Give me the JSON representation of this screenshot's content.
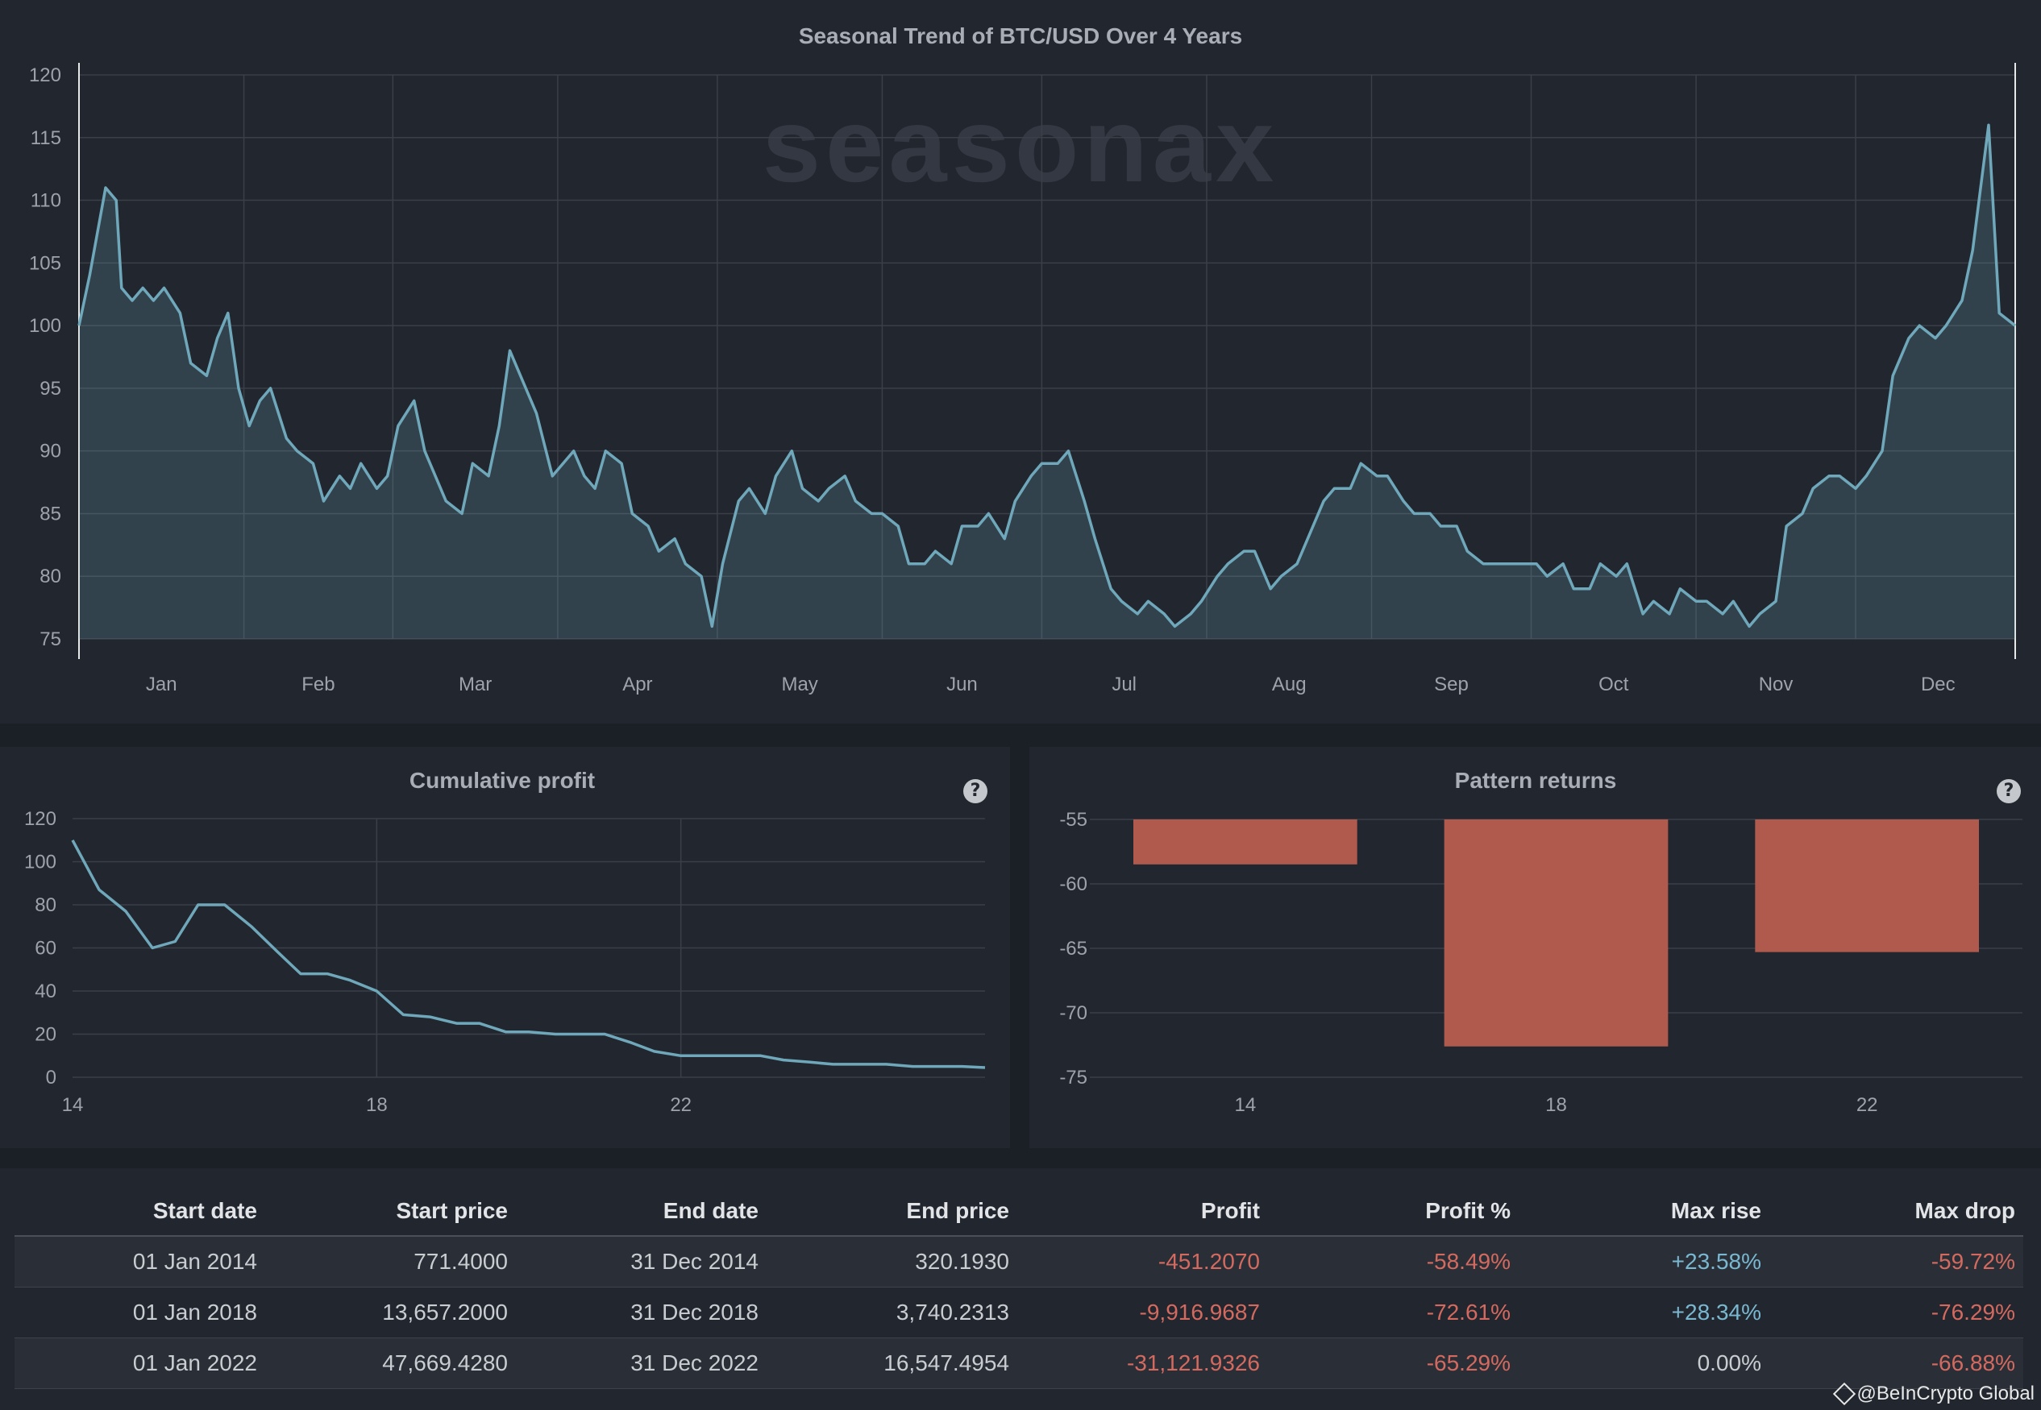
{
  "colors": {
    "line": "#6fa8bb",
    "fill": "#6fa8bb",
    "bar": "#b05a4e",
    "negative": "#d46a5f",
    "positive": "#79b8d0"
  },
  "watermark": "seasonax",
  "chart_data": [
    {
      "type": "area",
      "title": "Seasonal Trend of BTC/USD Over 4 Years",
      "x_ticks": [
        "Jan",
        "Feb",
        "Mar",
        "Apr",
        "May",
        "Jun",
        "Jul",
        "Aug",
        "Sep",
        "Oct",
        "Nov",
        "Dec"
      ],
      "ylim": [
        75,
        120
      ],
      "y_ticks": [
        75,
        80,
        85,
        90,
        95,
        100,
        105,
        110,
        115,
        120
      ],
      "grid": true,
      "series": [
        {
          "x_day_of_year": [
            1,
            3,
            6,
            8,
            9,
            11,
            13,
            15,
            17,
            20,
            22,
            25,
            27,
            29,
            31,
            33,
            35,
            37,
            40,
            42,
            45,
            47,
            50,
            52,
            54,
            57,
            59,
            61,
            64,
            66,
            68,
            70,
            73,
            75,
            78,
            80,
            82,
            85,
            87,
            90,
            92,
            94,
            96,
            98,
            100,
            103,
            105,
            108,
            110,
            113,
            115,
            118,
            120,
            122,
            125,
            127,
            130,
            132,
            135,
            137,
            140,
            142,
            145,
            147,
            150,
            152,
            155,
            157,
            160,
            162,
            165,
            167,
            170,
            172,
            175,
            177,
            180,
            182,
            185,
            187,
            190,
            192,
            195,
            197,
            200,
            202,
            205,
            207,
            210,
            212,
            215,
            217,
            220,
            222,
            225,
            227,
            230,
            232,
            235,
            237,
            240,
            242,
            245,
            247,
            250,
            252,
            255,
            257,
            260,
            262,
            265,
            267,
            270,
            272,
            275,
            277,
            280,
            282,
            285,
            287,
            290,
            292,
            295,
            297,
            300,
            302,
            305,
            307,
            310,
            312,
            315,
            317,
            320,
            322,
            325,
            327,
            330,
            332,
            335,
            337,
            340,
            342,
            345,
            347,
            350,
            352,
            355,
            357,
            360,
            362,
            365
          ],
          "values": [
            100,
            104,
            111,
            110,
            103,
            102,
            103,
            102,
            103,
            101,
            97,
            96,
            99,
            101,
            95,
            92,
            94,
            95,
            91,
            90,
            89,
            86,
            88,
            87,
            89,
            87,
            88,
            92,
            94,
            90,
            88,
            86,
            85,
            89,
            88,
            92,
            98,
            95,
            93,
            88,
            89,
            90,
            88,
            87,
            90,
            89,
            85,
            84,
            82,
            83,
            81,
            80,
            76,
            81,
            86,
            87,
            85,
            88,
            90,
            87,
            86,
            87,
            88,
            86,
            85,
            85,
            84,
            81,
            81,
            82,
            81,
            84,
            84,
            85,
            83,
            86,
            88,
            89,
            89,
            90,
            86,
            83,
            79,
            78,
            77,
            78,
            77,
            76,
            77,
            78,
            80,
            81,
            82,
            82,
            79,
            80,
            81,
            83,
            86,
            87,
            87,
            89,
            88,
            88,
            86,
            85,
            85,
            84,
            84,
            82,
            81,
            81,
            81,
            81,
            81,
            80,
            81,
            79,
            79,
            81,
            80,
            81,
            77,
            78,
            77,
            79,
            78,
            78,
            77,
            78,
            76,
            77,
            78,
            84,
            85,
            87,
            88,
            88,
            87,
            88,
            90,
            96,
            99,
            100,
            99,
            100,
            102,
            106,
            116,
            101,
            100
          ]
        }
      ]
    },
    {
      "type": "line",
      "title": "Cumulative profit",
      "x": [
        14,
        18,
        22
      ],
      "x_ticks": [
        "14",
        "18",
        "22"
      ],
      "ylim": [
        0,
        120
      ],
      "y_ticks": [
        0,
        20,
        40,
        60,
        80,
        100,
        120
      ],
      "grid": true,
      "series": [
        {
          "x_values": [
            14,
            14.35,
            14.7,
            15.05,
            15.35,
            15.65,
            16,
            16.35,
            16.7,
            17,
            17.35,
            17.65,
            18,
            18.35,
            18.7,
            19.05,
            19.35,
            19.7,
            20,
            20.35,
            20.7,
            21,
            21.35,
            21.65,
            22,
            22.35,
            22.7,
            23.05,
            23.35,
            23.7,
            24,
            24.35,
            24.7,
            25.05,
            25.35,
            25.7,
            26
          ],
          "values": [
            110,
            87,
            77,
            60,
            63,
            80,
            80,
            70,
            58,
            48,
            48,
            45,
            40,
            29,
            28,
            25,
            25,
            21,
            21,
            20,
            20,
            20,
            16,
            12,
            10,
            10,
            10,
            10,
            8,
            7,
            6,
            6,
            6,
            5,
            5,
            5,
            4.5
          ]
        }
      ]
    },
    {
      "type": "bar",
      "title": "Pattern returns",
      "categories": [
        "14",
        "18",
        "22"
      ],
      "values": [
        -58.49,
        -72.61,
        -65.29
      ],
      "ylim": [
        -75,
        -55
      ],
      "y_ticks": [
        -55,
        -60,
        -65,
        -70,
        -75
      ],
      "grid": true
    }
  ],
  "table": {
    "headers": [
      "Start date",
      "Start price",
      "End date",
      "End price",
      "Profit",
      "Profit %",
      "Max rise",
      "Max drop"
    ],
    "rows": [
      [
        "01 Jan 2014",
        "771.4000",
        "31 Dec 2014",
        "320.1930",
        "-451.2070",
        "-58.49%",
        "+23.58%",
        "-59.72%"
      ],
      [
        "01 Jan 2018",
        "13,657.2000",
        "31 Dec 2018",
        "3,740.2313",
        "-9,916.9687",
        "-72.61%",
        "+28.34%",
        "-76.29%"
      ],
      [
        "01 Jan 2022",
        "47,669.4280",
        "31 Dec 2022",
        "16,547.4954",
        "-31,121.9326",
        "-65.29%",
        "0.00%",
        "-66.88%"
      ]
    ]
  },
  "help_icon_glyph": "?",
  "credit": "@BeInCrypto Global"
}
